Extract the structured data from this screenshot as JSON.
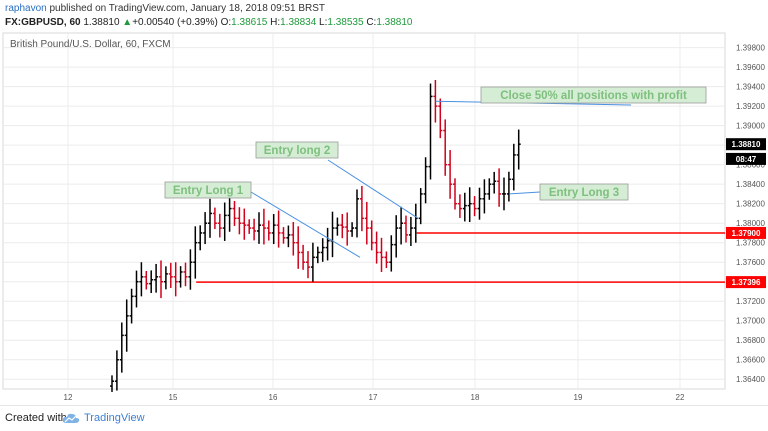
{
  "header": {
    "author": "raphavon",
    "published": "published on TradingView.com, January 18, 2018 09:51 BRST",
    "symbol": "FX:GBPUSD, 60",
    "last": "1.38810",
    "change_arrow": "▲",
    "change": "+0.00540 (+0.39%)",
    "o_label": "O:",
    "o_value": "1.38615",
    "h_label": "H:",
    "h_value": "1.38834",
    "l_label": "L:",
    "l_value": "1.38535",
    "c_label": "C:",
    "c_value": "1.38810"
  },
  "footer": {
    "created_with": "Created with",
    "brand": "TradingView",
    "logo_icon": "tradingview-cloud-icon"
  },
  "colors": {
    "up": "#000000",
    "down": "#d0021b",
    "level_line": "#ff0000",
    "annotation_bg": "#d4edd4",
    "annotation_text": "#7fbf7f",
    "annotation_line": "#4a90e2",
    "price_tag_bg": "#ff0000",
    "last_tag_bg": "#000000"
  },
  "chart_data": {
    "type": "ohlc",
    "title": "British Pound/U.S. Dollar, 60, FXCM",
    "y_axis_position": "right",
    "ylim": [
      1.363,
      1.3995
    ],
    "y_ticks": [
      "1.39800",
      "1.39600",
      "1.39400",
      "1.39200",
      "1.39000",
      "1.38800",
      "1.38600",
      "1.38400",
      "1.38200",
      "1.38000",
      "1.37800",
      "1.37600",
      "1.37400",
      "1.37200",
      "1.37000",
      "1.36800",
      "1.36600",
      "1.36400"
    ],
    "x_ticks": [
      "12",
      "15",
      "16",
      "17",
      "18",
      "19",
      "22"
    ],
    "grid": true,
    "bars_close": [
      1.3638,
      1.366,
      1.3685,
      1.3705,
      1.3725,
      1.374,
      1.3745,
      1.3738,
      1.3742,
      1.3745,
      1.374,
      1.3748,
      1.3745,
      1.374,
      1.375,
      1.3745,
      1.376,
      1.378,
      1.379,
      1.38,
      1.381,
      1.38,
      1.3795,
      1.3808,
      1.3815,
      1.3805,
      1.38,
      1.3798,
      1.3795,
      1.3792,
      1.3798,
      1.3795,
      1.379,
      1.3798,
      1.379,
      1.3785,
      1.3788,
      1.378,
      1.377,
      1.376,
      1.3755,
      1.3765,
      1.377,
      1.3775,
      1.3782,
      1.3795,
      1.3798,
      1.3796,
      1.3792,
      1.3795,
      1.3825,
      1.3805,
      1.3795,
      1.378,
      1.377,
      1.3765,
      1.376,
      1.3778,
      1.3795,
      1.38,
      1.3788,
      1.3795,
      1.3805,
      1.383,
      1.3858,
      1.393,
      1.392,
      1.3895,
      1.386,
      1.384,
      1.382,
      1.3815,
      1.3818,
      1.382,
      1.3815,
      1.3825,
      1.383,
      1.384,
      1.3843,
      1.383,
      1.383,
      1.3845,
      1.387,
      1.3881
    ],
    "levels": [
      {
        "label": "1.37900",
        "value": 1.379
      },
      {
        "label": "1.37396",
        "value": 1.37396
      }
    ],
    "price_tags": [
      {
        "label": "1.38810",
        "value": 1.3881
      },
      {
        "label": "08:47",
        "value": 1.387
      }
    ],
    "annotations": [
      {
        "text": "Entry Long 1",
        "target_bar": 55
      },
      {
        "text": "Entry long 2",
        "target_bar": 62
      },
      {
        "text": "Close 50% all positions with profit",
        "target_bar": 66
      },
      {
        "text": "Entry Long 3",
        "target_bar": 80
      }
    ]
  }
}
